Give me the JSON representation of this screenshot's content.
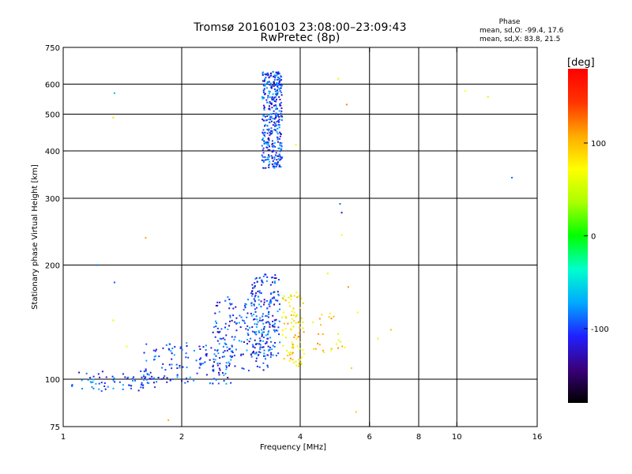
{
  "header": {
    "title_line1": "Tromsø 20160103 23:08:00–23:09:43",
    "title_line2": "RwPretec (8p)",
    "phase_heading": "Phase",
    "phase_o_line": "mean, sd,O: -99.4, 17.6",
    "phase_x_line": "mean, sd,X:  83.8, 21.5"
  },
  "chart_data": {
    "type": "scatter",
    "title": "Tromsø 20160103 23:08:00–23:09:43",
    "subtitle": "RwPretec (8p)",
    "xlabel": "Frequency [MHz]",
    "ylabel": "Stationary phase Virtual Height [km]",
    "x_scale": "log",
    "y_scale": "log",
    "xlim": [
      1,
      16
    ],
    "ylim": [
      75,
      750
    ],
    "x_ticks": [
      1,
      2,
      4,
      6,
      8,
      10,
      16
    ],
    "x_tick_labels": [
      "1",
      "2",
      "4",
      "6",
      "8",
      "10",
      "16"
    ],
    "y_ticks": [
      75,
      100,
      200,
      300,
      400,
      500,
      600,
      750
    ],
    "y_tick_labels": [
      "75",
      "100",
      "200",
      "300",
      "400",
      "500",
      "600",
      "750"
    ],
    "x_grid": [
      2,
      4,
      6,
      8,
      10
    ],
    "y_grid": [
      100,
      200,
      300,
      400,
      500,
      600
    ],
    "grid": true,
    "colorbar": {
      "label": "[deg]",
      "range": [
        -180,
        180
      ],
      "ticks": [
        -100,
        0,
        100
      ],
      "tick_labels": [
        "-100",
        "0",
        "100"
      ],
      "colormap": [
        "#000000",
        "#3a007a",
        "#2020ff",
        "#00aaff",
        "#00ffcc",
        "#00ff00",
        "#aaff00",
        "#ffff00",
        "#ffaa00",
        "#ff3300",
        "#ff0000"
      ]
    },
    "series": [
      {
        "mode": "O",
        "color_phase_deg": -99.4,
        "point_clouds": [
          {
            "x_range": [
              1.05,
              1.75
            ],
            "y_range": [
              93,
              105
            ],
            "n": 70
          },
          {
            "x_range": [
              1.6,
              2.7
            ],
            "y_range": [
              97,
              125
            ],
            "n": 140
          },
          {
            "x_range": [
              2.4,
              3.4
            ],
            "y_range": [
              105,
              165
            ],
            "n": 170
          },
          {
            "x_range": [
              3.0,
              3.55
            ],
            "y_range": [
              115,
              190
            ],
            "n": 170
          },
          {
            "x_range": [
              3.2,
              3.6
            ],
            "y_range": [
              360,
              650
            ],
            "n": 380
          }
        ],
        "sparse_points": [
          {
            "x": 1.22,
            "y": 200
          },
          {
            "x": 1.35,
            "y": 568
          },
          {
            "x": 1.35,
            "y": 180
          },
          {
            "x": 5.05,
            "y": 290
          },
          {
            "x": 5.1,
            "y": 275
          },
          {
            "x": 13.8,
            "y": 340
          }
        ]
      },
      {
        "mode": "X",
        "color_phase_deg": 83.8,
        "point_clouds": [
          {
            "x_range": [
              3.6,
              4.1
            ],
            "y_range": [
              108,
              170
            ],
            "n": 90
          },
          {
            "x_range": [
              4.3,
              5.2
            ],
            "y_range": [
              115,
              150
            ],
            "n": 25
          }
        ],
        "sparse_points": [
          {
            "x": 1.34,
            "y": 490
          },
          {
            "x": 1.34,
            "y": 143
          },
          {
            "x": 1.62,
            "y": 236
          },
          {
            "x": 5.0,
            "y": 620
          },
          {
            "x": 5.25,
            "y": 530
          },
          {
            "x": 5.1,
            "y": 240
          },
          {
            "x": 5.3,
            "y": 175
          },
          {
            "x": 5.6,
            "y": 150
          },
          {
            "x": 6.3,
            "y": 128
          },
          {
            "x": 6.8,
            "y": 135
          },
          {
            "x": 10.5,
            "y": 575
          },
          {
            "x": 12.0,
            "y": 555
          },
          {
            "x": 5.4,
            "y": 107
          },
          {
            "x": 5.55,
            "y": 82
          },
          {
            "x": 1.85,
            "y": 78
          },
          {
            "x": 4.7,
            "y": 190
          },
          {
            "x": 3.9,
            "y": 415
          },
          {
            "x": 1.45,
            "y": 122
          }
        ]
      }
    ]
  }
}
